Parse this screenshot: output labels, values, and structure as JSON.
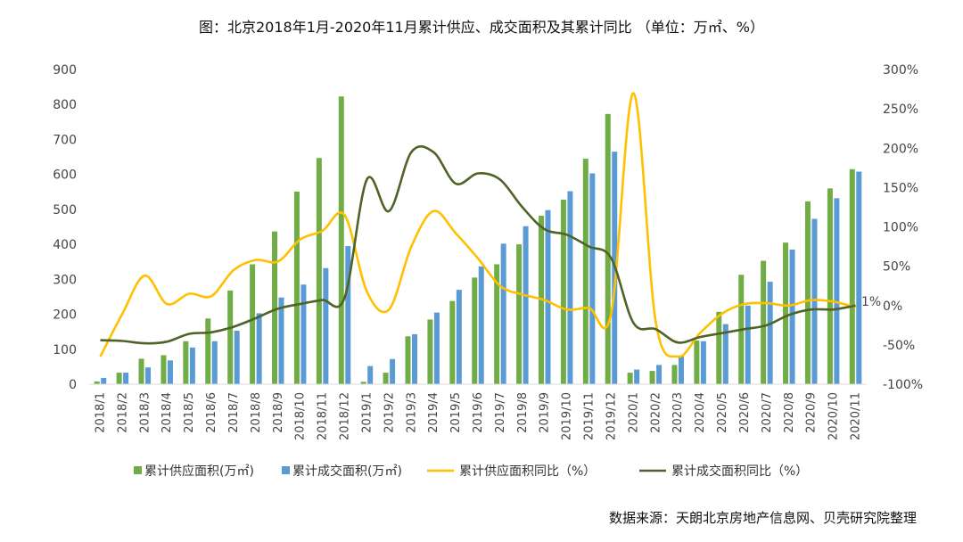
{
  "chart_data": {
    "type": "bar",
    "title": "图：北京2018年1月-2020年11月累计供应、成交面积及其累计同比 （单位：万㎡、%）",
    "source": "数据来源：天朗北京房地产信息网、贝壳研究院整理",
    "categories": [
      "2018/1",
      "2018/2",
      "2018/3",
      "2018/4",
      "2018/5",
      "2018/6",
      "2018/7",
      "2018/8",
      "2018/9",
      "2018/10",
      "2018/11",
      "2018/12",
      "2019/1",
      "2019/2",
      "2019/3",
      "2019/4",
      "2019/5",
      "2019/6",
      "2019/7",
      "2019/8",
      "2019/9",
      "2019/10",
      "2019/11",
      "2019/12",
      "2020/1",
      "2020/2",
      "2020/3",
      "2020/4",
      "2020/5",
      "2020/6",
      "2020/7",
      "2020/8",
      "2020/9",
      "2020/10",
      "2020/11"
    ],
    "y_left": {
      "ylim": [
        0,
        900
      ],
      "ticks": [
        "0",
        "100",
        "200",
        "300",
        "400",
        "500",
        "600",
        "700",
        "800",
        "900"
      ]
    },
    "y_right": {
      "ylim": [
        -100,
        300
      ],
      "ticks": [
        "-100%",
        "-50%",
        "0%",
        "50%",
        "100%",
        "150%",
        "200%",
        "250%",
        "300%"
      ]
    },
    "series": [
      {
        "name": "累计供应面积(万㎡)",
        "type": "bar",
        "axis": "left",
        "color": "#70ad47",
        "values": [
          8,
          33,
          73,
          83,
          123,
          188,
          268,
          343,
          437,
          551,
          647,
          823,
          7,
          33,
          137,
          185,
          238,
          305,
          343,
          400,
          482,
          528,
          645,
          773,
          33,
          38,
          55,
          125,
          207,
          313,
          353,
          405,
          523,
          560,
          615
        ]
      },
      {
        "name": "累计成交面积(万㎡)",
        "type": "bar",
        "axis": "left",
        "color": "#5b9bd5",
        "values": [
          18,
          33,
          48,
          68,
          105,
          123,
          153,
          203,
          248,
          285,
          332,
          395,
          52,
          72,
          143,
          205,
          270,
          337,
          402,
          452,
          498,
          552,
          603,
          665,
          42,
          55,
          82,
          123,
          172,
          225,
          293,
          385,
          473,
          532,
          608
        ]
      },
      {
        "name": "累计供应面积同比（%）",
        "type": "line",
        "axis": "right",
        "color": "#ffc000",
        "values": [
          -65,
          -10,
          38,
          2,
          15,
          12,
          45,
          58,
          56,
          84,
          95,
          115,
          18,
          -5,
          75,
          120,
          92,
          60,
          25,
          14,
          7,
          -5,
          -3,
          -10,
          270,
          -20,
          -65,
          -35,
          -10,
          2,
          3,
          0,
          7,
          5,
          -2
        ]
      },
      {
        "name": "累计成交面积同比（%）",
        "type": "line",
        "axis": "right",
        "color": "#4f6228",
        "values": [
          -44,
          -45,
          -48,
          -46,
          -36,
          -34,
          -27,
          -16,
          -4,
          2,
          7,
          10,
          160,
          120,
          195,
          195,
          155,
          168,
          160,
          125,
          97,
          90,
          75,
          60,
          -22,
          -30,
          -47,
          -40,
          -35,
          -30,
          -25,
          -12,
          -5,
          -5,
          0
        ]
      }
    ],
    "annotations": [
      {
        "text": "1%"
      }
    ],
    "legend_position": "bottom",
    "grid": false
  }
}
